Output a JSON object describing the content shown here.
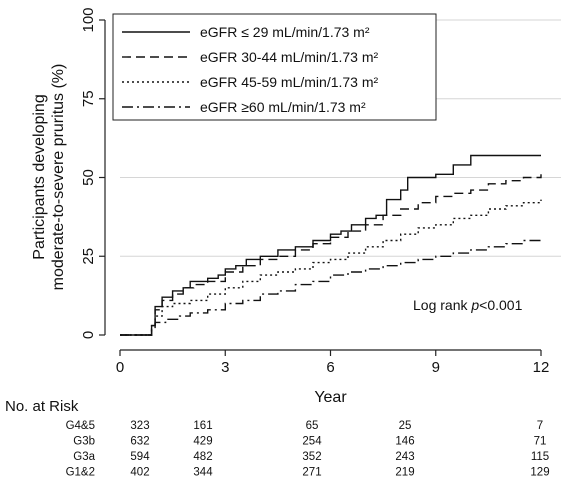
{
  "chart_data": {
    "type": "line",
    "subtype": "kaplan-meier step curves",
    "xlabel": "Year",
    "ylabel_lines": [
      "Participants developing",
      "moderate-to-severe pruritus (%)"
    ],
    "xlim": [
      0,
      12
    ],
    "ylim": [
      0,
      100
    ],
    "x_ticks": [
      0,
      3,
      6,
      9,
      12
    ],
    "y_ticks": [
      0,
      25,
      50,
      75,
      100
    ],
    "grid": "horizontal gridlines at y ticks",
    "legend_position": "top-left",
    "annotation": {
      "prefix": "Log rank ",
      "italic": "p",
      "suffix": "<0.001"
    },
    "series": [
      {
        "name": "eGFR ≤ 29 mL/min/1.73 m²",
        "line_style": "solid",
        "points": [
          [
            0,
            0
          ],
          [
            0.8,
            0
          ],
          [
            0.9,
            3
          ],
          [
            1.0,
            9
          ],
          [
            1.2,
            12
          ],
          [
            1.5,
            14
          ],
          [
            1.8,
            15
          ],
          [
            2.0,
            17
          ],
          [
            2.5,
            18
          ],
          [
            2.8,
            19
          ],
          [
            3.0,
            21
          ],
          [
            3.3,
            22
          ],
          [
            3.6,
            24
          ],
          [
            4.0,
            25
          ],
          [
            4.5,
            27
          ],
          [
            5.0,
            28
          ],
          [
            5.5,
            30
          ],
          [
            6.0,
            32
          ],
          [
            6.3,
            33
          ],
          [
            6.6,
            35
          ],
          [
            7.0,
            37
          ],
          [
            7.3,
            38
          ],
          [
            7.6,
            43
          ],
          [
            8.0,
            46
          ],
          [
            8.2,
            50
          ],
          [
            9.0,
            51
          ],
          [
            9.5,
            54
          ],
          [
            10.0,
            57
          ],
          [
            12.0,
            57
          ]
        ]
      },
      {
        "name": "eGFR 30-44 mL/min/1.73 m²",
        "line_style": "dashed",
        "points": [
          [
            0,
            0
          ],
          [
            0.8,
            0
          ],
          [
            0.9,
            3
          ],
          [
            1.0,
            8
          ],
          [
            1.2,
            11
          ],
          [
            1.5,
            13
          ],
          [
            1.8,
            15
          ],
          [
            2.1,
            16
          ],
          [
            2.5,
            17
          ],
          [
            3.0,
            20
          ],
          [
            3.5,
            22
          ],
          [
            4.0,
            24
          ],
          [
            4.5,
            25
          ],
          [
            5.0,
            27
          ],
          [
            5.5,
            29
          ],
          [
            6.0,
            31
          ],
          [
            6.5,
            33
          ],
          [
            7.0,
            35
          ],
          [
            7.5,
            38
          ],
          [
            8.0,
            40
          ],
          [
            8.5,
            42
          ],
          [
            9.0,
            44
          ],
          [
            9.5,
            45
          ],
          [
            10.0,
            46
          ],
          [
            10.5,
            48
          ],
          [
            11.0,
            49
          ],
          [
            11.5,
            50
          ],
          [
            12.0,
            51
          ]
        ]
      },
      {
        "name": "eGFR 45-59 mL/min/1.73 m²",
        "line_style": "dotted",
        "points": [
          [
            0,
            0
          ],
          [
            0.8,
            0
          ],
          [
            0.9,
            3
          ],
          [
            1.0,
            6
          ],
          [
            1.2,
            9
          ],
          [
            1.5,
            10
          ],
          [
            2.0,
            11
          ],
          [
            2.5,
            13
          ],
          [
            3.0,
            15
          ],
          [
            3.5,
            17
          ],
          [
            4.0,
            19
          ],
          [
            4.5,
            20
          ],
          [
            5.0,
            21
          ],
          [
            5.5,
            23
          ],
          [
            6.0,
            24
          ],
          [
            6.5,
            26
          ],
          [
            7.0,
            28
          ],
          [
            7.5,
            30
          ],
          [
            8.0,
            32
          ],
          [
            8.5,
            34
          ],
          [
            9.0,
            35
          ],
          [
            9.5,
            37
          ],
          [
            10.0,
            38
          ],
          [
            10.5,
            40
          ],
          [
            11.0,
            41
          ],
          [
            11.5,
            42
          ],
          [
            12.0,
            43
          ]
        ]
      },
      {
        "name": "eGFR ≥60 mL/min/1.73 m²",
        "line_style": "dash-dot",
        "points": [
          [
            0,
            0
          ],
          [
            0.8,
            0
          ],
          [
            0.9,
            2
          ],
          [
            1.0,
            4
          ],
          [
            1.3,
            5
          ],
          [
            1.7,
            6
          ],
          [
            2.0,
            7
          ],
          [
            2.5,
            8
          ],
          [
            3.0,
            10
          ],
          [
            3.5,
            11
          ],
          [
            4.0,
            13
          ],
          [
            4.5,
            14
          ],
          [
            5.0,
            16
          ],
          [
            5.5,
            17
          ],
          [
            6.0,
            19
          ],
          [
            6.5,
            20
          ],
          [
            7.0,
            21
          ],
          [
            7.5,
            22
          ],
          [
            8.0,
            23
          ],
          [
            8.5,
            24
          ],
          [
            9.0,
            25
          ],
          [
            9.5,
            26
          ],
          [
            10.0,
            27
          ],
          [
            10.5,
            28
          ],
          [
            11.0,
            29
          ],
          [
            11.5,
            30
          ],
          [
            12.0,
            31
          ]
        ]
      }
    ],
    "risk_table": {
      "title": "No. at Risk",
      "rows": [
        {
          "label": "G4&5",
          "values": [
            323,
            161,
            65,
            25,
            7
          ]
        },
        {
          "label": "G3b",
          "values": [
            632,
            429,
            254,
            146,
            71
          ]
        },
        {
          "label": "G3a",
          "values": [
            594,
            482,
            352,
            243,
            115
          ]
        },
        {
          "label": "G1&2",
          "values": [
            402,
            344,
            271,
            219,
            129
          ]
        }
      ]
    }
  }
}
